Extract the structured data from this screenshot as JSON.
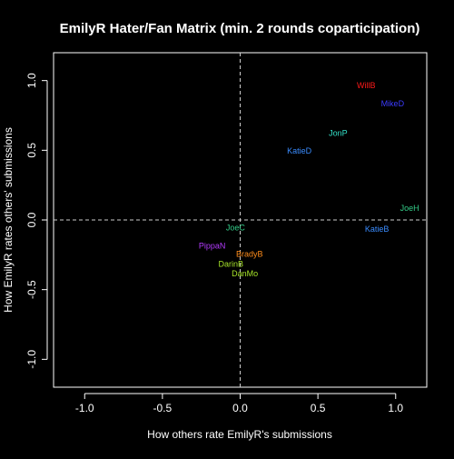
{
  "chart_data": {
    "type": "scatter",
    "title": "EmilyR Hater/Fan Matrix (min. 2 rounds coparticipation)",
    "xlabel": "How others rate EmilyR's submissions",
    "ylabel": "How EmilyR rates others' submissions",
    "xlim": [
      -1.2,
      1.2
    ],
    "ylim": [
      -1.2,
      1.2
    ],
    "x_ticks": [
      -1.0,
      -0.5,
      0.0,
      0.5,
      1.0
    ],
    "x_tick_labels": [
      "-1.0",
      "-0.5",
      "0.0",
      "0.5",
      "1.0"
    ],
    "y_ticks": [
      -1.0,
      -0.5,
      0.0,
      0.5,
      1.0
    ],
    "y_tick_labels": [
      "-1.0",
      "-0.5",
      "0.0",
      "0.5",
      "1.0"
    ],
    "grid": false,
    "reference_lines": {
      "x": 0,
      "y": 0,
      "style": "dashed"
    },
    "points": [
      {
        "label": "WillB",
        "x": 0.81,
        "y": 0.96,
        "color": "#ff1a1a"
      },
      {
        "label": "MikeD",
        "x": 0.98,
        "y": 0.83,
        "color": "#3b3bff"
      },
      {
        "label": "JonP",
        "x": 0.63,
        "y": 0.62,
        "color": "#33e0c8"
      },
      {
        "label": "KatieD",
        "x": 0.38,
        "y": 0.49,
        "color": "#3a8cff"
      },
      {
        "label": "JoeH",
        "x": 1.09,
        "y": 0.08,
        "color": "#33cc88"
      },
      {
        "label": "KatieB",
        "x": 0.88,
        "y": -0.07,
        "color": "#3a8cff"
      },
      {
        "label": "JoeC",
        "x": -0.03,
        "y": -0.06,
        "color": "#33cc88"
      },
      {
        "label": "PippaN",
        "x": -0.18,
        "y": -0.19,
        "color": "#b43cff"
      },
      {
        "label": "BradyB",
        "x": 0.06,
        "y": -0.25,
        "color": "#ff8c1a"
      },
      {
        "label": "DarinB",
        "x": -0.06,
        "y": -0.32,
        "color": "#a8e62a"
      },
      {
        "label": "DanMo",
        "x": 0.03,
        "y": -0.39,
        "color": "#a8e62a"
      }
    ]
  },
  "colors": {
    "background": "#000000",
    "foreground": "#ffffff",
    "reference_line": "#cccccc"
  }
}
